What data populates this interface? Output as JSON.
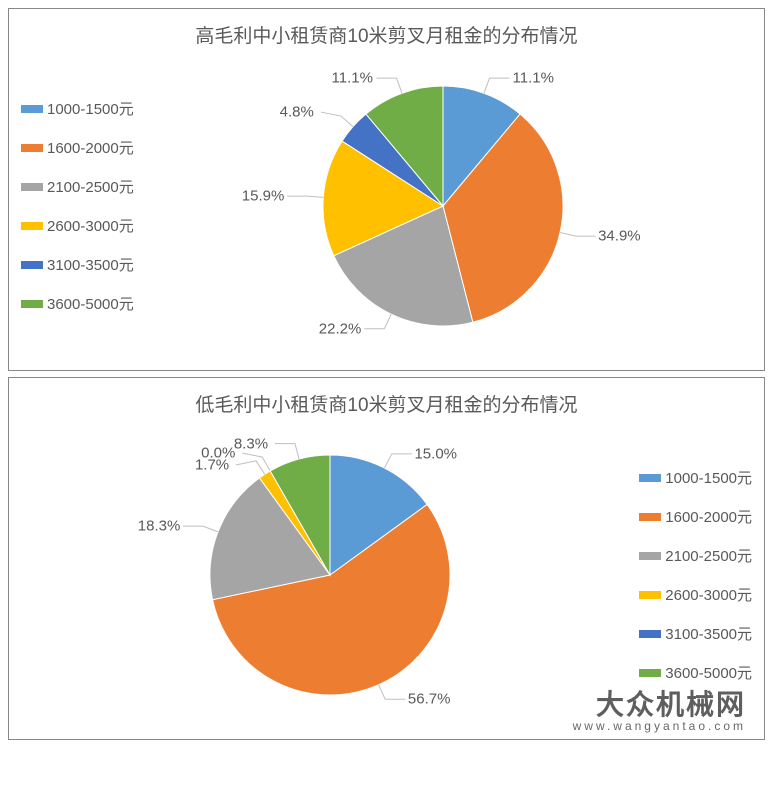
{
  "palette": {
    "series": [
      "#5b9bd5",
      "#ed7d31",
      "#a5a5a5",
      "#ffc000",
      "#4472c4",
      "#70ad47"
    ],
    "text": "#595959",
    "border": "#888888",
    "background": "#ffffff"
  },
  "legend_labels": [
    "1000-1500元",
    "1600-2000元",
    "2100-2500元",
    "2600-3000元",
    "3100-3500元",
    "3600-5000元"
  ],
  "chart_top": {
    "type": "pie",
    "title": "高毛利中小租赁商10米剪叉月租金的分布情况",
    "title_fontsize": 19,
    "legend_position": "left",
    "legend_fontsize": 15,
    "label_fontsize": 15,
    "pie_radius": 120,
    "start_angle_deg": -90,
    "slices": [
      {
        "label": "1000-1500元",
        "value": 11.1,
        "display": "11.1%",
        "color": "#5b9bd5"
      },
      {
        "label": "1600-2000元",
        "value": 34.9,
        "display": "34.9%",
        "color": "#ed7d31"
      },
      {
        "label": "2100-2500元",
        "value": 22.2,
        "display": "22.2%",
        "color": "#a5a5a5"
      },
      {
        "label": "2600-3000元",
        "value": 15.9,
        "display": "15.9%",
        "color": "#ffc000"
      },
      {
        "label": "3100-3500元",
        "value": 4.8,
        "display": "4.8%",
        "color": "#4472c4"
      },
      {
        "label": "3600-5000元",
        "value": 11.1,
        "display": "11.1%",
        "color": "#70ad47"
      }
    ]
  },
  "chart_bottom": {
    "type": "pie",
    "title": "低毛利中小租赁商10米剪叉月租金的分布情况",
    "title_fontsize": 19,
    "legend_position": "right",
    "legend_fontsize": 15,
    "label_fontsize": 15,
    "pie_radius": 120,
    "start_angle_deg": -90,
    "slices": [
      {
        "label": "1000-1500元",
        "value": 15.0,
        "display": "15.0%",
        "color": "#5b9bd5"
      },
      {
        "label": "1600-2000元",
        "value": 56.7,
        "display": "56.7%",
        "color": "#ed7d31"
      },
      {
        "label": "2100-2500元",
        "value": 18.3,
        "display": "18.3%",
        "color": "#a5a5a5"
      },
      {
        "label": "2600-3000元",
        "value": 1.7,
        "display": "1.7%",
        "color": "#ffc000"
      },
      {
        "label": "3100-3500元",
        "value": 0.0,
        "display": "0.0%",
        "color": "#4472c4"
      },
      {
        "label": "3600-5000元",
        "value": 8.3,
        "display": "8.3%",
        "color": "#70ad47"
      }
    ]
  },
  "watermark": {
    "main": "大众机械网",
    "sub": "www.wangyantao.com"
  }
}
